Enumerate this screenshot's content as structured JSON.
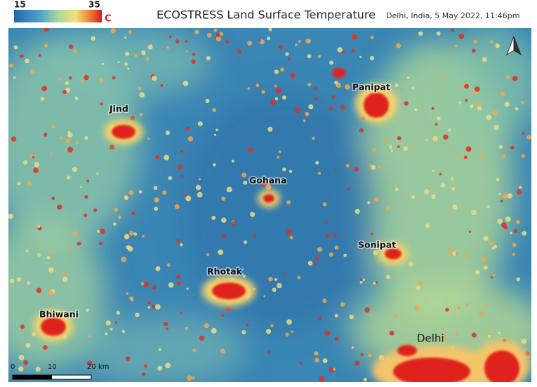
{
  "header": {
    "title": "ECOSTRESS Land Surface Temperature",
    "subtitle": "Delhi, India, 5 May 2022, 11:46pm"
  },
  "legend": {
    "min": 15,
    "max": 35,
    "unit": "C"
  },
  "places": [
    {
      "label": "Jind"
    },
    {
      "label": "Panipat"
    },
    {
      "label": "Gohana"
    },
    {
      "label": "Sonipat"
    },
    {
      "label": "Rhotak"
    },
    {
      "label": "Bhiwani"
    },
    {
      "label": "Delhi"
    }
  ],
  "scale_bar": {
    "ticks": [
      "0",
      "10",
      "20 km"
    ]
  }
}
